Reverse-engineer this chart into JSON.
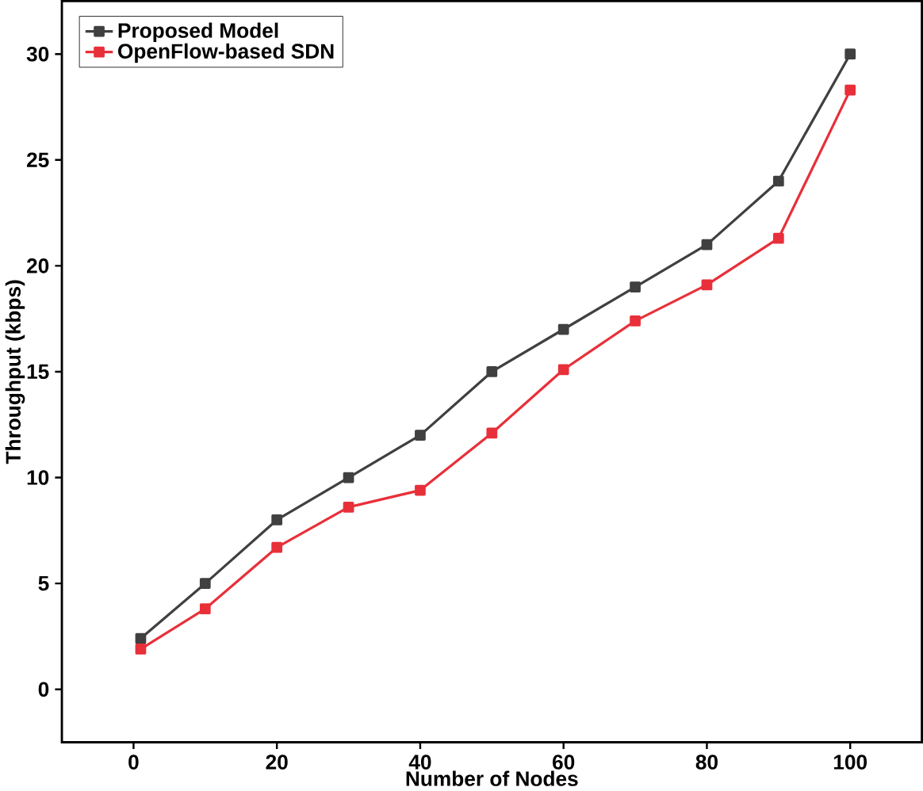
{
  "chart_data": {
    "type": "line",
    "xlabel": "Number of Nodes",
    "ylabel": "Throughput (kbps)",
    "x": [
      1,
      10,
      20,
      30,
      40,
      50,
      60,
      70,
      80,
      90,
      100
    ],
    "series": [
      {
        "name": "Proposed Model",
        "color": "#404040",
        "values": [
          2.4,
          5,
          8,
          10,
          12,
          15,
          17,
          19,
          21,
          24,
          30
        ]
      },
      {
        "name": "OpenFlow-based SDN",
        "color": "#e8303a",
        "values": [
          1.9,
          3.8,
          6.7,
          8.6,
          9.4,
          12.1,
          15.1,
          17.4,
          19.1,
          21.3,
          28.3
        ]
      }
    ],
    "xlim": [
      -10,
      110
    ],
    "ylim": [
      -2.5,
      32.5
    ],
    "xticks": [
      0,
      20,
      40,
      60,
      80,
      100
    ],
    "yticks": [
      0,
      5,
      10,
      15,
      20,
      25,
      30
    ],
    "marker": "square",
    "line_style": "solid",
    "legend": "top left",
    "grid": false
  }
}
